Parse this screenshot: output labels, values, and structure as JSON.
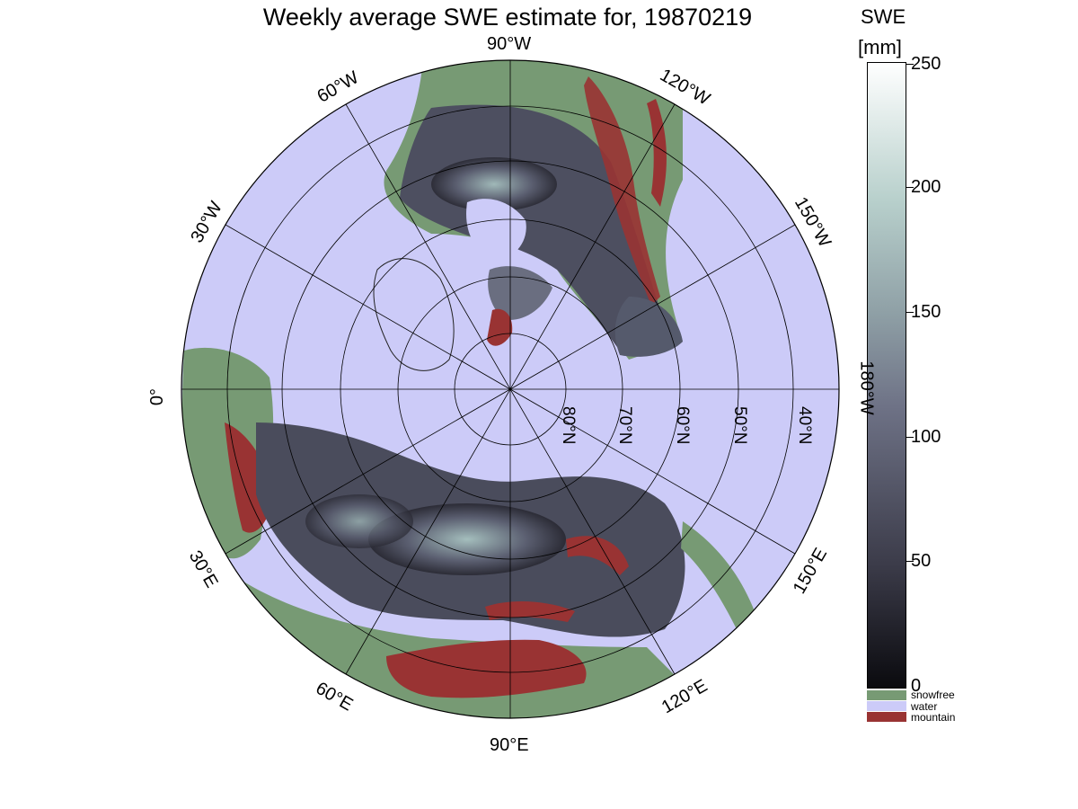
{
  "title": "Weekly average SWE estimate for, 19870219",
  "colorbar": {
    "title_line1": "SWE",
    "title_line2": "[mm]",
    "ticks": [
      "250",
      "200",
      "150",
      "100",
      "50",
      "0"
    ],
    "range": [
      0,
      250
    ],
    "gradient_colors": [
      "#0a0a0e",
      "#3c3c4a",
      "#6e7286",
      "#8fa0a6",
      "#b8d0cc",
      "#ffffff"
    ]
  },
  "categories": [
    {
      "label": "snowfree",
      "color": "#779a74"
    },
    {
      "label": "water",
      "color": "#cccbf8"
    },
    {
      "label": "mountain",
      "color": "#993333"
    }
  ],
  "longitude_labels": {
    "top": "90°W",
    "upper_left_1": "60°W",
    "upper_left_2": "30°W",
    "left": "0°",
    "lower_left_1": "30°E",
    "lower_left_2": "60°E",
    "bottom": "90°E",
    "lower_right_1": "120°E",
    "lower_right_2": "150°E",
    "right": "180°W",
    "upper_right_1": "150°W",
    "upper_right_2": "120°W"
  },
  "latitude_labels": [
    "80°N",
    "70°N",
    "60°N",
    "50°N",
    "40°N"
  ],
  "map": {
    "projection": "north polar stereographic",
    "land_color": "#779a74",
    "water_color": "#cccbf8",
    "mountain_color": "#993333"
  }
}
